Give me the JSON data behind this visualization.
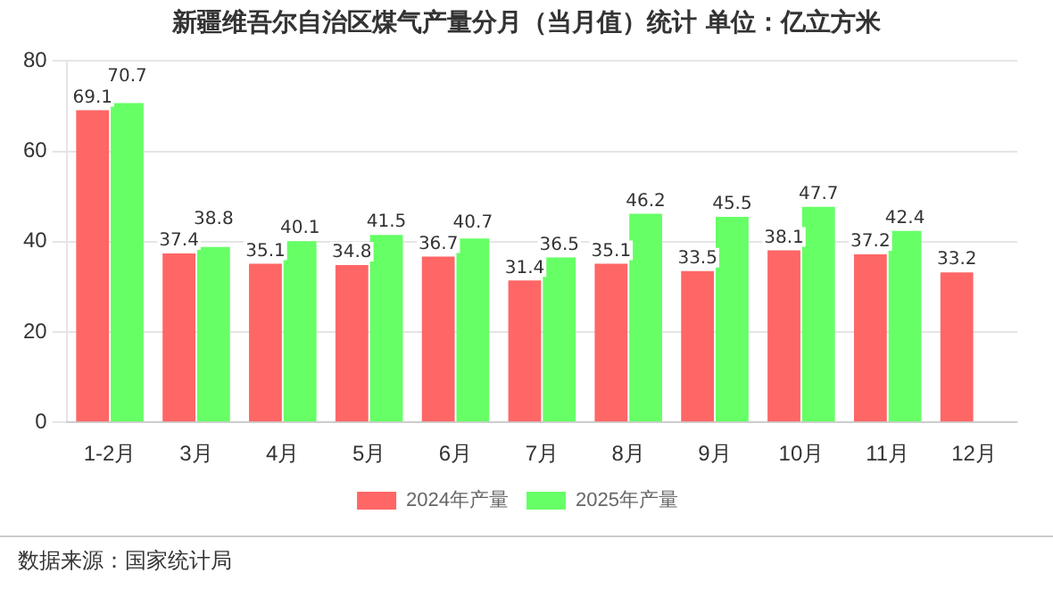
{
  "chart_data": {
    "type": "bar",
    "title": "新疆维吾尔自治区煤气产量分月（当月值）统计  单位：亿立方米",
    "categories": [
      "1-2月",
      "3月",
      "4月",
      "5月",
      "6月",
      "7月",
      "8月",
      "9月",
      "10月",
      "11月",
      "12月"
    ],
    "series": [
      {
        "name": "2024年产量",
        "color": "#ff6666",
        "values": [
          69.1,
          37.4,
          35.1,
          34.8,
          36.7,
          31.4,
          35.1,
          33.5,
          38.1,
          37.2,
          33.2
        ]
      },
      {
        "name": "2025年产量",
        "color": "#66ff66",
        "values": [
          70.7,
          38.8,
          40.1,
          41.5,
          40.7,
          36.5,
          46.2,
          45.5,
          47.7,
          42.4,
          null
        ]
      }
    ],
    "ylim": [
      0,
      80
    ],
    "yticks": [
      0,
      20,
      40,
      60,
      80
    ],
    "grid": "y",
    "legend": "bottom",
    "data_labels": true,
    "annotations": [
      "数据来源：国家统计局"
    ]
  }
}
